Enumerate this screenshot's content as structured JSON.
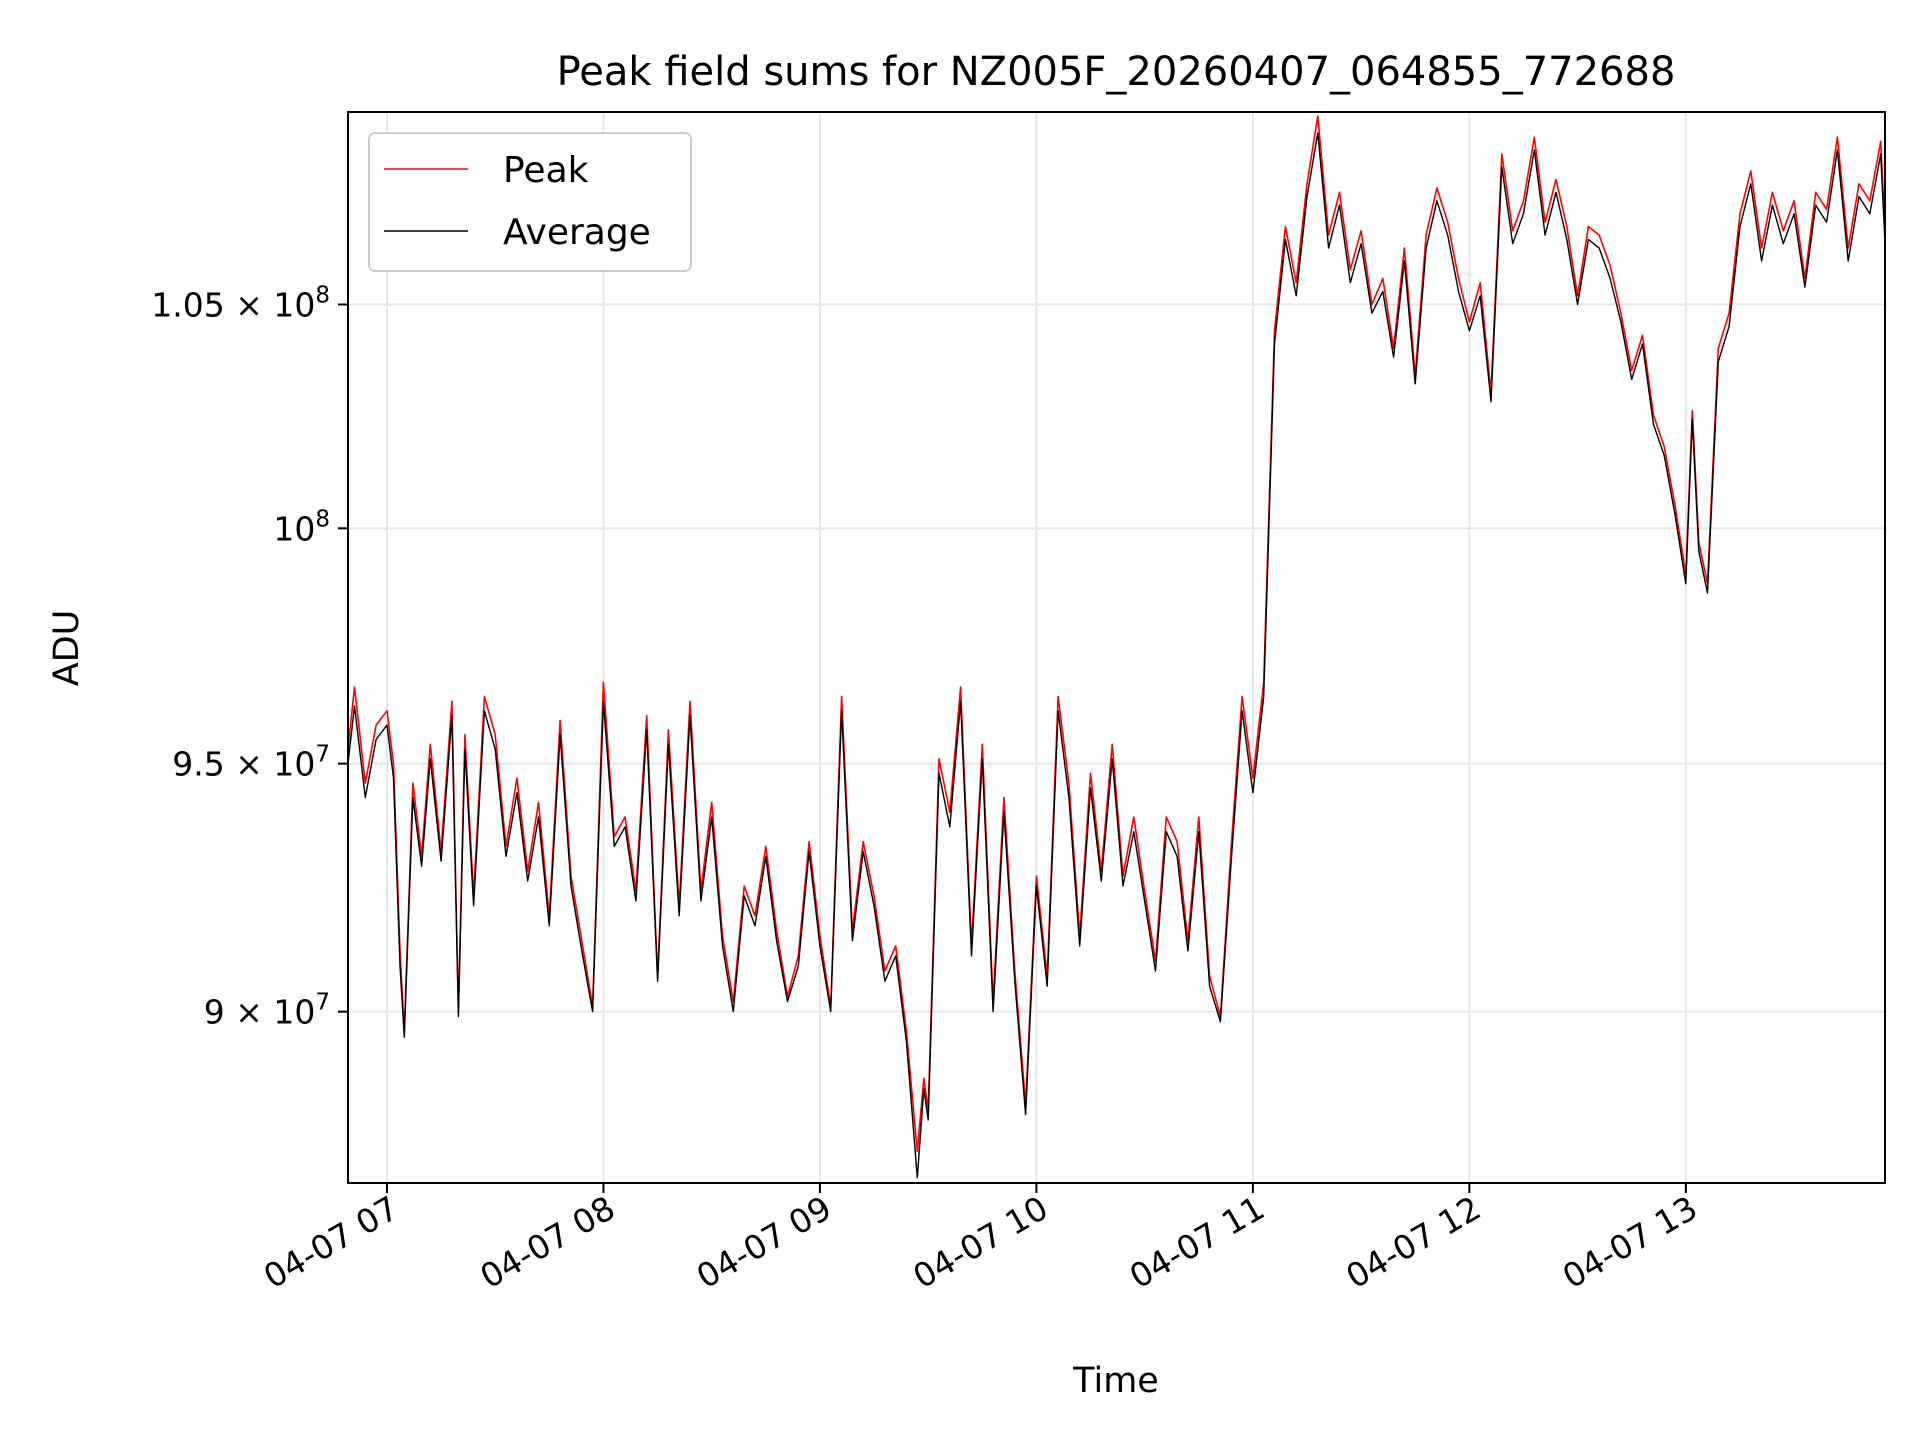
{
  "chart_data": {
    "type": "line",
    "title": "Peak field sums for NZ005F_20260407_064855_772688",
    "xlabel": "Time",
    "ylabel": "ADU",
    "yscale": "log",
    "grid": true,
    "xlim": [
      6.82,
      13.92
    ],
    "ylim": [
      86700000,
      109500000
    ],
    "x_ticks": [
      {
        "value": 7,
        "label": "04-07 07"
      },
      {
        "value": 8,
        "label": "04-07 08"
      },
      {
        "value": 9,
        "label": "04-07 09"
      },
      {
        "value": 10,
        "label": "04-07 10"
      },
      {
        "value": 11,
        "label": "04-07 11"
      },
      {
        "value": 12,
        "label": "04-07 12"
      },
      {
        "value": 13,
        "label": "04-07 13"
      }
    ],
    "y_ticks": [
      {
        "value": 90000000,
        "base": "9 × 10",
        "exp": "7"
      },
      {
        "value": 95000000,
        "base": "9.5 × 10",
        "exp": "7"
      },
      {
        "value": 100000000,
        "base": "10",
        "exp": "8"
      },
      {
        "value": 105000000,
        "base": "1.05 × 10",
        "exp": "8"
      }
    ],
    "legend": {
      "position": "top-left"
    },
    "series": [
      {
        "name": "Peak",
        "color": "#ff0000",
        "x": [
          6.82,
          6.85,
          6.9,
          6.95,
          7.0,
          7.03,
          7.06,
          7.08,
          7.12,
          7.16,
          7.2,
          7.25,
          7.3,
          7.33,
          7.36,
          7.4,
          7.45,
          7.5,
          7.55,
          7.6,
          7.65,
          7.7,
          7.75,
          7.8,
          7.85,
          7.9,
          7.95,
          8.0,
          8.05,
          8.1,
          8.15,
          8.2,
          8.25,
          8.3,
          8.35,
          8.4,
          8.45,
          8.5,
          8.55,
          8.6,
          8.65,
          8.7,
          8.75,
          8.8,
          8.85,
          8.9,
          8.95,
          9.0,
          9.05,
          9.1,
          9.15,
          9.2,
          9.25,
          9.3,
          9.35,
          9.4,
          9.45,
          9.48,
          9.5,
          9.55,
          9.6,
          9.65,
          9.7,
          9.75,
          9.8,
          9.85,
          9.9,
          9.95,
          10.0,
          10.05,
          10.1,
          10.15,
          10.2,
          10.25,
          10.3,
          10.35,
          10.4,
          10.45,
          10.5,
          10.55,
          10.6,
          10.65,
          10.7,
          10.75,
          10.8,
          10.85,
          10.9,
          10.95,
          11.0,
          11.05,
          11.1,
          11.15,
          11.2,
          11.25,
          11.3,
          11.35,
          11.4,
          11.45,
          11.5,
          11.55,
          11.6,
          11.65,
          11.7,
          11.75,
          11.8,
          11.85,
          11.9,
          11.95,
          12.0,
          12.05,
          12.1,
          12.15,
          12.2,
          12.25,
          12.3,
          12.35,
          12.4,
          12.45,
          12.5,
          12.55,
          12.6,
          12.65,
          12.7,
          12.75,
          12.8,
          12.85,
          12.9,
          12.95,
          13.0,
          13.03,
          13.06,
          13.1,
          13.15,
          13.2,
          13.25,
          13.3,
          13.35,
          13.4,
          13.45,
          13.5,
          13.55,
          13.6,
          13.65,
          13.7,
          13.75,
          13.8,
          13.85,
          13.9,
          13.92
        ],
        "values": [
          95300000,
          96600000,
          94600000,
          95800000,
          96100000,
          95000000,
          91200000,
          89600000,
          94600000,
          93100000,
          95400000,
          93200000,
          96300000,
          90000000,
          95600000,
          92300000,
          96400000,
          95600000,
          93300000,
          94700000,
          92800000,
          94200000,
          91900000,
          95900000,
          92700000,
          91400000,
          90100000,
          96700000,
          93500000,
          93900000,
          92400000,
          96000000,
          90700000,
          95700000,
          92100000,
          96300000,
          92400000,
          94200000,
          91500000,
          90200000,
          92500000,
          91900000,
          93300000,
          91600000,
          90300000,
          91100000,
          93400000,
          91500000,
          90100000,
          96400000,
          91600000,
          93400000,
          92300000,
          90800000,
          91300000,
          89600000,
          87300000,
          88700000,
          88100000,
          95100000,
          94000000,
          96600000,
          91300000,
          95400000,
          90200000,
          94300000,
          90800000,
          88200000,
          92700000,
          90700000,
          96400000,
          94600000,
          91500000,
          94800000,
          92800000,
          95400000,
          92700000,
          93900000,
          92400000,
          91000000,
          93900000,
          93400000,
          91400000,
          93900000,
          90700000,
          89900000,
          93300000,
          96400000,
          94700000,
          96700000,
          104400000,
          106800000,
          105500000,
          107800000,
          109400000,
          106600000,
          107600000,
          105800000,
          106700000,
          105000000,
          105600000,
          104000000,
          106300000,
          103400000,
          106600000,
          107700000,
          106900000,
          105600000,
          104600000,
          105500000,
          103000000,
          108500000,
          106700000,
          107400000,
          108900000,
          106900000,
          107900000,
          106800000,
          105200000,
          106800000,
          106600000,
          105900000,
          104800000,
          103500000,
          104300000,
          102500000,
          101800000,
          100500000,
          99000000,
          102600000,
          99700000,
          98800000,
          104000000,
          104800000,
          107100000,
          108100000,
          106300000,
          107600000,
          106700000,
          107400000,
          105600000,
          107600000,
          107200000,
          108900000,
          106300000,
          107800000,
          107400000,
          108800000,
          106700000
        ]
      },
      {
        "name": "Average",
        "color": "#000000",
        "x": [
          6.82,
          6.85,
          6.9,
          6.95,
          7.0,
          7.03,
          7.06,
          7.08,
          7.12,
          7.16,
          7.2,
          7.25,
          7.3,
          7.33,
          7.36,
          7.4,
          7.45,
          7.5,
          7.55,
          7.6,
          7.65,
          7.7,
          7.75,
          7.8,
          7.85,
          7.9,
          7.95,
          8.0,
          8.05,
          8.1,
          8.15,
          8.2,
          8.25,
          8.3,
          8.35,
          8.4,
          8.45,
          8.5,
          8.55,
          8.6,
          8.65,
          8.7,
          8.75,
          8.8,
          8.85,
          8.9,
          8.95,
          9.0,
          9.05,
          9.1,
          9.15,
          9.2,
          9.25,
          9.3,
          9.35,
          9.4,
          9.45,
          9.48,
          9.5,
          9.55,
          9.6,
          9.65,
          9.7,
          9.75,
          9.8,
          9.85,
          9.9,
          9.95,
          10.0,
          10.05,
          10.1,
          10.15,
          10.2,
          10.25,
          10.3,
          10.35,
          10.4,
          10.45,
          10.5,
          10.55,
          10.6,
          10.65,
          10.7,
          10.75,
          10.8,
          10.85,
          10.9,
          10.95,
          11.0,
          11.05,
          11.1,
          11.15,
          11.2,
          11.25,
          11.3,
          11.35,
          11.4,
          11.45,
          11.5,
          11.55,
          11.6,
          11.65,
          11.7,
          11.75,
          11.8,
          11.85,
          11.9,
          11.95,
          12.0,
          12.05,
          12.1,
          12.15,
          12.2,
          12.25,
          12.3,
          12.35,
          12.4,
          12.45,
          12.5,
          12.55,
          12.6,
          12.65,
          12.7,
          12.75,
          12.8,
          12.85,
          12.9,
          12.95,
          13.0,
          13.03,
          13.06,
          13.1,
          13.15,
          13.2,
          13.25,
          13.3,
          13.35,
          13.4,
          13.45,
          13.5,
          13.55,
          13.6,
          13.65,
          13.7,
          13.75,
          13.8,
          13.85,
          13.9,
          13.92
        ],
        "values": [
          95000000,
          96200000,
          94300000,
          95500000,
          95800000,
          94700000,
          90900000,
          89500000,
          94300000,
          92900000,
          95100000,
          93000000,
          96000000,
          89900000,
          95300000,
          92100000,
          96100000,
          95300000,
          93100000,
          94400000,
          92600000,
          93900000,
          91700000,
          95600000,
          92500000,
          91200000,
          90000000,
          96300000,
          93300000,
          93700000,
          92200000,
          95700000,
          90600000,
          95400000,
          91900000,
          96000000,
          92200000,
          93900000,
          91300000,
          90000000,
          92300000,
          91700000,
          93100000,
          91400000,
          90200000,
          90900000,
          93200000,
          91300000,
          90000000,
          96100000,
          91400000,
          93200000,
          92100000,
          90600000,
          91100000,
          89400000,
          86800000,
          88500000,
          87900000,
          94800000,
          93700000,
          96300000,
          91100000,
          95100000,
          90000000,
          94000000,
          90600000,
          88000000,
          92500000,
          90500000,
          96100000,
          94300000,
          91300000,
          94500000,
          92600000,
          95100000,
          92500000,
          93600000,
          92200000,
          90800000,
          93600000,
          93100000,
          91200000,
          93600000,
          90500000,
          89800000,
          93000000,
          96100000,
          94400000,
          96400000,
          104100000,
          106500000,
          105200000,
          107500000,
          109000000,
          106300000,
          107300000,
          105500000,
          106400000,
          104800000,
          105300000,
          103800000,
          106000000,
          103200000,
          106300000,
          107400000,
          106600000,
          105300000,
          104400000,
          105200000,
          102800000,
          108200000,
          106400000,
          107100000,
          108600000,
          106600000,
          107600000,
          106500000,
          105000000,
          106500000,
          106300000,
          105600000,
          104600000,
          103300000,
          104100000,
          102300000,
          101600000,
          100300000,
          98800000,
          102400000,
          99500000,
          98600000,
          103700000,
          104500000,
          106800000,
          107800000,
          106000000,
          107300000,
          106400000,
          107100000,
          105400000,
          107300000,
          106900000,
          108600000,
          106000000,
          107500000,
          107100000,
          108500000,
          106400000
        ]
      }
    ]
  }
}
